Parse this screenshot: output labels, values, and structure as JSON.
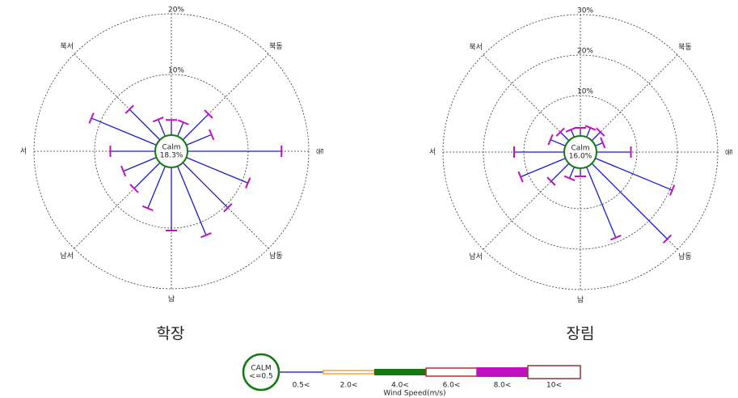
{
  "chart_data": [
    {
      "type": "windrose",
      "title": "학장",
      "calm_text": "Calm",
      "calm": 18.3,
      "calm_value_label": "18.3%",
      "values": [
        2.5,
        2.5,
        6,
        4.5,
        15.5,
        11,
        10.5,
        12.3,
        10.4,
        7.5,
        6,
        5.9,
        7.4,
        11.6,
        7.1,
        3
      ],
      "direction_labels": [
        null,
        "북동",
        "동",
        "남동",
        "남",
        "남서",
        "서",
        "북서"
      ],
      "rlim": [
        0,
        20
      ],
      "rticks": [
        {
          "value": 10,
          "label": "10%"
        },
        {
          "value": 20,
          "label": "20%"
        }
      ],
      "color": "#1a1acc",
      "grid": true
    },
    {
      "type": "windrose",
      "title": "장림",
      "calm_text": "Calm",
      "calm": 16.0,
      "calm_value_label": "16.0%",
      "values": [
        2,
        2.5,
        3,
        2,
        8.5,
        20.6,
        26.4,
        18.9,
        2,
        3,
        6.2,
        12,
        12.4,
        4,
        3,
        2
      ],
      "direction_labels": [
        null,
        "북동",
        "동",
        "남동",
        "남",
        "남서",
        "서",
        "북서"
      ],
      "rlim": [
        0,
        30
      ],
      "rticks": [
        {
          "value": 10,
          "label": "10%"
        },
        {
          "value": 20,
          "label": "20%"
        },
        {
          "value": 30,
          "label": "30%"
        }
      ],
      "color": "#1a1acc",
      "grid": true
    }
  ],
  "legend": {
    "calm_label": "CALM",
    "calm_range": "<=0.5",
    "title": "Wind Speed(m/s)",
    "bins": [
      {
        "label": "0.5<",
        "color": "#3333cc",
        "filled": true
      },
      {
        "label": "2.0<",
        "color": "#f5a040",
        "filled": false
      },
      {
        "label": "4.0<",
        "color": "#137a13",
        "filled": true
      },
      {
        "label": "6.0<",
        "color": "#c0282a",
        "filled": false
      },
      {
        "label": "8.0<",
        "color": "#c010c0",
        "filled": true
      },
      {
        "label": "10<",
        "color": "#9a3030",
        "filled": false
      }
    ]
  }
}
